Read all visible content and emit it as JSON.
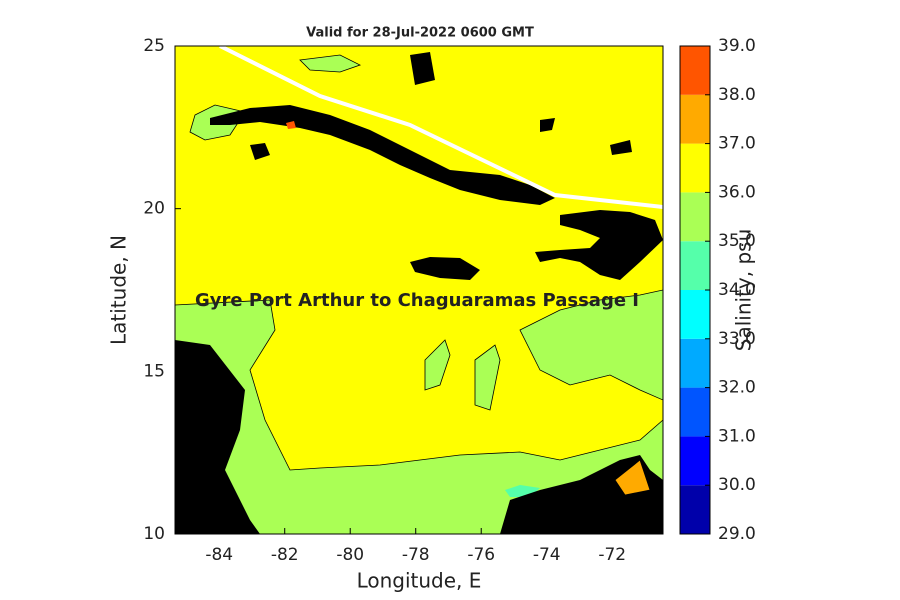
{
  "chart_data": {
    "type": "contour-map",
    "title": "Valid for 28-Jul-2022 0600 GMT",
    "xlabel": "Longitude, E",
    "ylabel": "Latitude, N",
    "annotation": "Gyre Port Arthur to Chaguaramas Passage I",
    "xlim": [
      -85.35,
      -70.45
    ],
    "ylim": [
      10,
      25
    ],
    "xticks": [
      -84,
      -82,
      -80,
      -78,
      -76,
      -74,
      -72
    ],
    "yticks": [
      10,
      15,
      20,
      25
    ],
    "colorbar": {
      "label": "Salinity, psu",
      "lim": [
        29,
        39
      ],
      "ticks": [
        {
          "value": 29,
          "label": "29.0"
        },
        {
          "value": 30,
          "label": "30.0"
        },
        {
          "value": 31,
          "label": "31.0"
        },
        {
          "value": 32,
          "label": "32.0"
        },
        {
          "value": 33,
          "label": "33.0"
        },
        {
          "value": 34,
          "label": "34.0"
        },
        {
          "value": 35,
          "label": "35.0"
        },
        {
          "value": 36,
          "label": "36.0"
        },
        {
          "value": 37,
          "label": "37.0"
        },
        {
          "value": 38,
          "label": "38.0"
        },
        {
          "value": 39,
          "label": "39.0"
        }
      ],
      "colors": [
        "#0000aa",
        "#0000ff",
        "#0055ff",
        "#00aaff",
        "#00ffff",
        "#55ffaa",
        "#aaff55",
        "#ffff00",
        "#ffaa00",
        "#ff5500"
      ]
    }
  }
}
